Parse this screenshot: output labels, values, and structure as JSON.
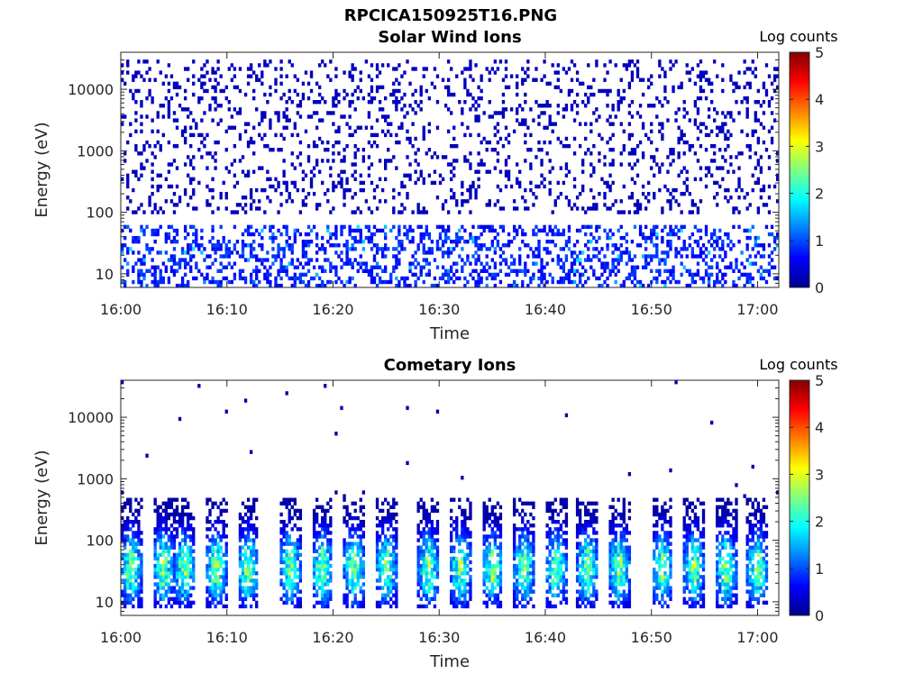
{
  "figure_title": "RPCICA150925T16.PNG",
  "chart_data": [
    {
      "type": "heatmap",
      "title": "Solar Wind Ions",
      "xlabel": "Time",
      "ylabel": "Energy (eV)",
      "x_ticks": [
        "16:00",
        "16:10",
        "16:20",
        "16:30",
        "16:40",
        "16:50",
        "17:00"
      ],
      "x_range": [
        "16:00",
        "17:02"
      ],
      "y_ticks": [
        "10",
        "100",
        "1000",
        "10000"
      ],
      "y_scale": "log",
      "y_range": [
        6,
        40000
      ],
      "colorbar": {
        "label": "Log counts",
        "range": [
          0,
          5
        ],
        "ticks": [
          "0",
          "1",
          "2",
          "3",
          "4",
          "5"
        ],
        "colormap": "jet"
      },
      "pattern": {
        "sparse_counts_range_ev": [
          100,
          30000
        ],
        "sparse_log_counts": 0.3,
        "dense_band_ev": [
          6,
          60
        ],
        "dense_band_log_counts": [
          0.5,
          1.8
        ]
      }
    },
    {
      "type": "heatmap",
      "title": "Cometary Ions",
      "xlabel": "Time",
      "ylabel": "Energy (eV)",
      "x_ticks": [
        "16:00",
        "16:10",
        "16:20",
        "16:30",
        "16:40",
        "16:50",
        "17:00"
      ],
      "x_range": [
        "16:00",
        "17:02"
      ],
      "y_ticks": [
        "10",
        "100",
        "1000",
        "10000"
      ],
      "y_scale": "log",
      "y_range": [
        6,
        40000
      ],
      "colorbar": {
        "label": "Log counts",
        "range": [
          0,
          5
        ],
        "ticks": [
          "0",
          "1",
          "2",
          "3",
          "4",
          "5"
        ],
        "colormap": "jet"
      },
      "burst_times": [
        "16:01",
        "16:04",
        "16:06",
        "16:09",
        "16:12",
        "16:16",
        "16:19",
        "16:22",
        "16:25",
        "16:29",
        "16:32",
        "16:35",
        "16:38",
        "16:41",
        "16:44",
        "16:47",
        "16:51",
        "16:54",
        "16:57",
        "17:00"
      ],
      "pattern": {
        "burst_energy_range_ev": [
          8,
          500
        ],
        "peak_energy_ev": 35,
        "peak_log_counts": 3.0,
        "sparse_high_energy_log_counts": 0.2
      }
    }
  ]
}
